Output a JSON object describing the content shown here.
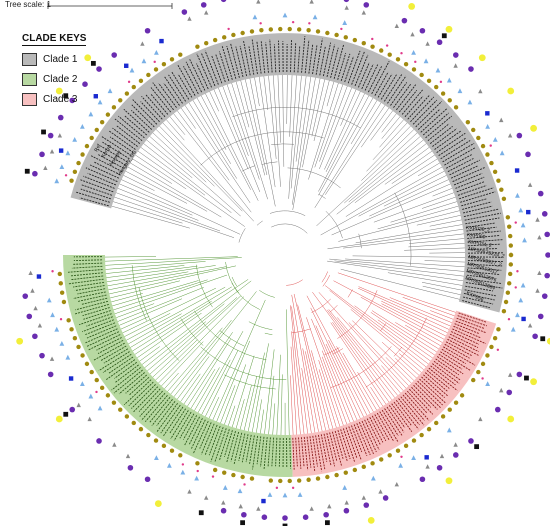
{
  "scale": {
    "label": "Tree scale: 1"
  },
  "legend": {
    "title": "CLADE KEYS",
    "items": [
      {
        "label": "Clade 1",
        "color": "#b9b9b9"
      },
      {
        "label": "Clade 2",
        "color": "#b8d9a2"
      },
      {
        "label": "Clade 3",
        "color": "#f7c0c0"
      }
    ]
  },
  "outgroup_labels": [
    "Ref",
    "Kenya",
    "Norway",
    "Hungary_UG"
  ],
  "tip_labels": {
    "clade1_visible": [
      "KXP020_2",
      "KXP060",
      "KXP034_2",
      "MRSN575224_2",
      "MRSN90927_2",
      "MRSN613017",
      "MRSN613576",
      "MRSN613384"
    ],
    "clade3_visible": [
      "KXP056"
    ]
  },
  "colors": {
    "clade1_branch": "#777777",
    "clade2_branch": "#5a9a3c",
    "clade3_branch": "#e05555",
    "marker_olive": "#a08a10",
    "marker_purple": "#6a2db0",
    "marker_blue": "#1a2ad0",
    "marker_lightblue": "#7ab0e6",
    "marker_gray": "#8a8a8a",
    "marker_yellow": "#f2ef3a",
    "marker_black": "#111111",
    "marker_pink": "#e03a8a"
  }
}
